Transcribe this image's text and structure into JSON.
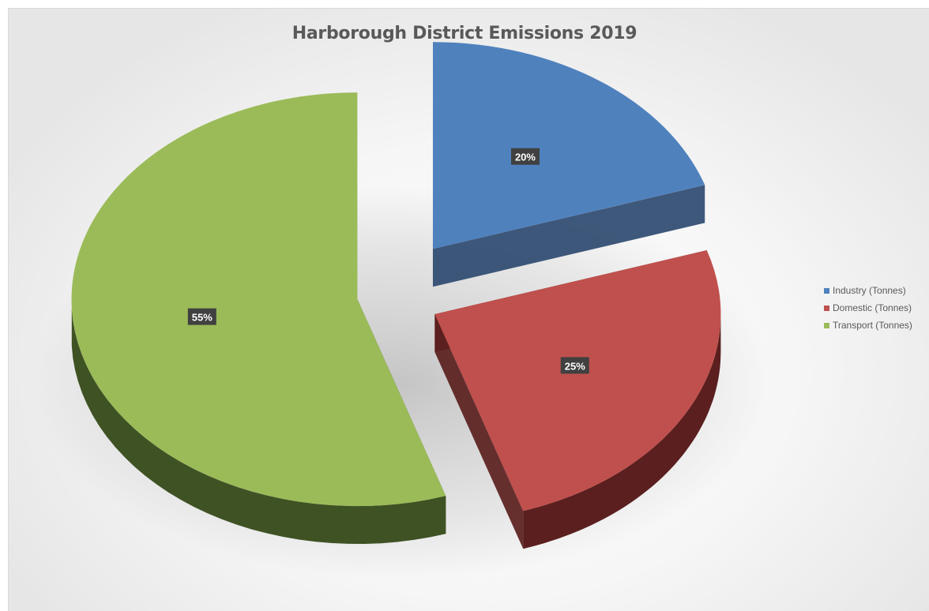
{
  "chart_data": {
    "type": "pie",
    "title": "Harborough District Emissions 2019",
    "categories": [
      "Industry (Tonnes)",
      "Domestic (Tonnes)",
      "Transport  (Tonnes)"
    ],
    "values": [
      20,
      25,
      55
    ],
    "data_labels": [
      "20%",
      "25%",
      "55%"
    ],
    "colors": [
      "#4f81bd",
      "#c0504d",
      "#9bbb59"
    ],
    "side_colors": [
      "#2e4a70",
      "#5a1f1e",
      "#3f5224"
    ],
    "legend_position": "right",
    "style": "3d-exploded"
  }
}
